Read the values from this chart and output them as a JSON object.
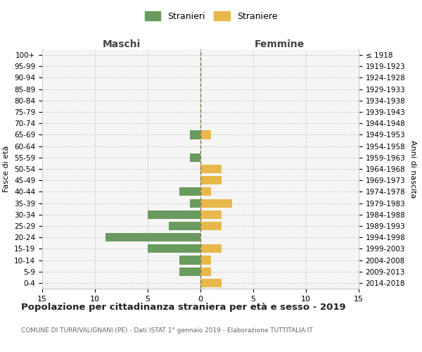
{
  "age_groups": [
    "100+",
    "95-99",
    "90-94",
    "85-89",
    "80-84",
    "75-79",
    "70-74",
    "65-69",
    "60-64",
    "55-59",
    "50-54",
    "45-49",
    "40-44",
    "35-39",
    "30-34",
    "25-29",
    "20-24",
    "15-19",
    "10-14",
    "5-9",
    "0-4"
  ],
  "birth_years": [
    "≤ 1918",
    "1919-1923",
    "1924-1928",
    "1929-1933",
    "1934-1938",
    "1939-1943",
    "1944-1948",
    "1949-1953",
    "1954-1958",
    "1959-1963",
    "1964-1968",
    "1969-1973",
    "1974-1978",
    "1979-1983",
    "1984-1988",
    "1989-1993",
    "1994-1998",
    "1999-2003",
    "2004-2008",
    "2009-2013",
    "2014-2018"
  ],
  "males": [
    0,
    0,
    0,
    0,
    0,
    0,
    0,
    1,
    0,
    1,
    0,
    0,
    2,
    1,
    5,
    3,
    9,
    5,
    2,
    2,
    0
  ],
  "females": [
    0,
    0,
    0,
    0,
    0,
    0,
    0,
    1,
    0,
    0,
    2,
    2,
    1,
    3,
    2,
    2,
    0,
    2,
    1,
    1,
    2
  ],
  "male_color": "#6a9b5e",
  "female_color": "#e8b84b",
  "center_line_color": "#7a7a50",
  "grid_color": "#cccccc",
  "bg_color": "#ffffff",
  "plot_bg_color": "#f5f5f5",
  "title": "Popolazione per cittadinanza straniera per età e sesso - 2019",
  "subtitle": "COMUNE DI TURRIVALIGNANI (PE) - Dati ISTAT 1° gennaio 2019 - Elaborazione TUTTITALIA.IT",
  "xlabel_left": "Maschi",
  "xlabel_right": "Femmine",
  "ylabel_left": "Fasce di età",
  "ylabel_right": "Anni di nascita",
  "legend_male": "Stranieri",
  "legend_female": "Straniere",
  "xlim": 15
}
